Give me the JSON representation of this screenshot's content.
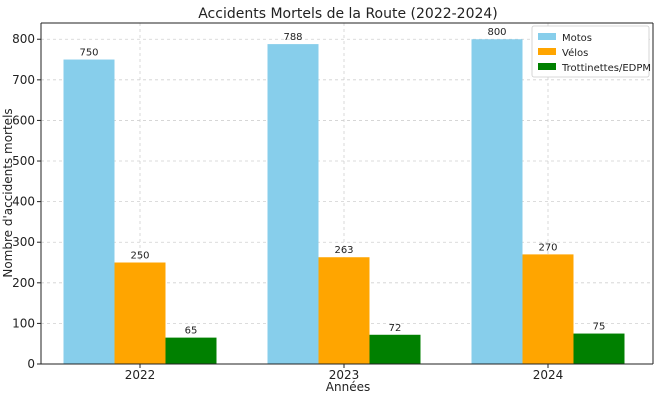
{
  "chart_data": {
    "type": "bar",
    "title": "Accidents Mortels de la Route (2022-2024)",
    "xlabel": "Années",
    "ylabel": "Nombre d'accidents mortels",
    "categories": [
      "2022",
      "2023",
      "2024"
    ],
    "series": [
      {
        "name": "Motos",
        "values": [
          750,
          788,
          800
        ],
        "color": "#87CEEB"
      },
      {
        "name": "Vélos",
        "values": [
          250,
          263,
          270
        ],
        "color": "#FFA500"
      },
      {
        "name": "Trottinettes/EDPM",
        "values": [
          65,
          72,
          75
        ],
        "color": "#008000"
      }
    ],
    "ylim": [
      0,
      840
    ],
    "yticks": [
      0,
      100,
      200,
      300,
      400,
      500,
      600,
      700,
      800
    ],
    "grid": true,
    "legend_position": "top-right"
  }
}
